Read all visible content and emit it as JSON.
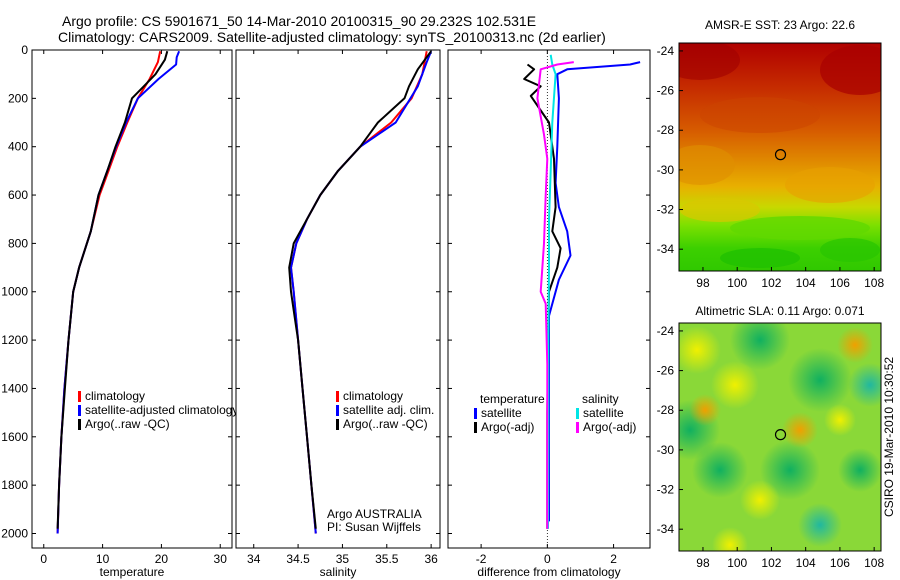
{
  "header": {
    "title_line1": "Argo profile: CS 5901671_50 14-Mar-2010 20100315_90 29.232S 102.531E",
    "title_line2": "Climatology: CARS2009. Satellite-adjusted climatology: synTS_20100313.nc (2d earlier)"
  },
  "chart_data": [
    {
      "type": "line",
      "panel": "temperature",
      "xlabel": "temperature",
      "ylabel": "",
      "xlim": [
        -2,
        32
      ],
      "ylim": [
        2060,
        0
      ],
      "xticks": [
        0,
        10,
        20,
        30
      ],
      "yticks": [
        0,
        200,
        400,
        600,
        800,
        1000,
        1200,
        1400,
        1600,
        1800,
        2000
      ],
      "legend": [
        "climatology",
        "satellite-adjusted climatology",
        "Argo(..raw -QC)"
      ],
      "legend_position": "lower-right",
      "series": [
        {
          "name": "climatology",
          "color": "#ff0000",
          "x": [
            19.8,
            19.4,
            18.0,
            16.0,
            14.2,
            12.5,
            11.0,
            9.5,
            8.0,
            6.0,
            5.0,
            4.2,
            3.5,
            3.0,
            2.6,
            2.35
          ],
          "y": [
            5,
            50,
            120,
            200,
            300,
            400,
            500,
            600,
            750,
            900,
            1000,
            1200,
            1400,
            1600,
            1800,
            2000
          ]
        },
        {
          "name": "satellite-adjusted climatology",
          "color": "#0000ff",
          "x": [
            23.0,
            22.6,
            22.5,
            19.5,
            16.0,
            14.0,
            12.3,
            10.8,
            9.3,
            8.0,
            6.0,
            5.0,
            4.2,
            3.5,
            3.0,
            2.6,
            2.35
          ],
          "y": [
            5,
            30,
            60,
            120,
            200,
            300,
            400,
            500,
            600,
            750,
            900,
            1000,
            1200,
            1400,
            1600,
            1800,
            2000
          ]
        },
        {
          "name": "Argo(..raw -QC)",
          "color": "#000000",
          "x": [
            21.0,
            20.6,
            19.0,
            17.0,
            15.0,
            13.8,
            12.2,
            10.8,
            9.3,
            8.0,
            6.0,
            5.0,
            4.2,
            3.6,
            3.0,
            2.6,
            2.35
          ],
          "y": [
            5,
            40,
            100,
            150,
            200,
            300,
            400,
            500,
            600,
            750,
            900,
            1000,
            1200,
            1400,
            1600,
            1800,
            1980
          ]
        }
      ]
    },
    {
      "type": "line",
      "panel": "salinity",
      "xlabel": "salinity",
      "xlim": [
        33.8,
        36.1
      ],
      "ylim": [
        2060,
        0
      ],
      "xticks": [
        34,
        34.5,
        35,
        35.5,
        36
      ],
      "legend": [
        "climatology",
        "satellite adj. clim.",
        "Argo(..raw -QC)"
      ],
      "legend_position": "lower-right",
      "annotations": [
        "Argo AUSTRALIA",
        "PI: Susan Wijffels"
      ],
      "series": [
        {
          "name": "climatology",
          "color": "#ff0000",
          "x": [
            35.95,
            35.9,
            35.78,
            35.55,
            35.2,
            34.95,
            34.75,
            34.6,
            34.48,
            34.42,
            34.45,
            34.5,
            34.55,
            34.6,
            34.65,
            34.7
          ],
          "y": [
            5,
            100,
            200,
            300,
            400,
            500,
            600,
            700,
            800,
            900,
            1000,
            1200,
            1400,
            1600,
            1800,
            2000
          ]
        },
        {
          "name": "satellite adj. clim.",
          "color": "#0000ff",
          "x": [
            36.0,
            35.95,
            35.85,
            35.6,
            35.2,
            34.95,
            34.75,
            34.6,
            34.48,
            34.42,
            34.45,
            34.5,
            34.55,
            34.6,
            34.65,
            34.7
          ],
          "y": [
            5,
            50,
            150,
            300,
            400,
            500,
            600,
            700,
            800,
            900,
            1000,
            1200,
            1400,
            1600,
            1800,
            2000
          ]
        },
        {
          "name": "Argo(..raw -QC)",
          "color": "#000000",
          "x": [
            36.0,
            35.85,
            35.75,
            35.7,
            35.55,
            35.4,
            35.2,
            34.95,
            34.75,
            34.6,
            34.45,
            34.4,
            34.42,
            34.46,
            34.5,
            34.55,
            34.6,
            34.65,
            34.7
          ],
          "y": [
            5,
            80,
            150,
            200,
            250,
            300,
            400,
            500,
            600,
            700,
            800,
            900,
            1000,
            1100,
            1200,
            1400,
            1600,
            1800,
            1980
          ]
        }
      ]
    },
    {
      "type": "line",
      "panel": "difference",
      "xlabel": "difference from climatology",
      "xlim": [
        -3,
        3.1
      ],
      "ylim": [
        2060,
        0
      ],
      "xticks": [
        -2,
        0,
        2
      ],
      "legend_temperature_title": "temperature",
      "legend_salinity_title": "salinity",
      "legend": [
        "satellite",
        "Argo(-adj)",
        "satellite",
        "Argo(-adj)"
      ],
      "legend_position": "lower-center",
      "series": [
        {
          "name": "temperature satellite",
          "color": "#0000ff",
          "x": [
            2.8,
            2.5,
            0.6,
            0.3,
            0.35,
            0.3,
            0.25,
            0.35,
            0.6,
            0.7,
            0.35,
            0.05,
            0.05,
            0.05,
            0.05,
            0.05
          ],
          "y": [
            50,
            60,
            80,
            100,
            200,
            400,
            550,
            650,
            750,
            850,
            950,
            1100,
            1300,
            1500,
            1700,
            1950
          ]
        },
        {
          "name": "temperature Argo(-adj)",
          "color": "#000000",
          "x": [
            -0.6,
            -0.4,
            -0.7,
            -0.2,
            -0.5,
            0.05,
            0.2,
            0.25,
            0.15,
            0.4,
            0.3,
            0.05,
            0.02,
            0.0,
            0.0,
            0.0
          ],
          "y": [
            60,
            80,
            120,
            150,
            190,
            300,
            450,
            650,
            750,
            820,
            900,
            1000,
            1200,
            1500,
            1800,
            1980
          ]
        },
        {
          "name": "salinity satellite",
          "color": "#00e5e5",
          "x": [
            0.1,
            0.15,
            0.25,
            0.15,
            0.1,
            0.05,
            0.05,
            0.03,
            0.03,
            0.02
          ],
          "y": [
            20,
            60,
            100,
            300,
            500,
            700,
            900,
            1200,
            1600,
            1980
          ]
        },
        {
          "name": "salinity Argo(-adj)",
          "color": "#ff00ff",
          "x": [
            0.8,
            0.3,
            -0.2,
            -0.3,
            -0.1,
            0.0,
            -0.05,
            -0.1,
            -0.2,
            -0.05,
            0.0,
            0.0
          ],
          "y": [
            50,
            60,
            80,
            200,
            350,
            450,
            600,
            800,
            1000,
            1050,
            1300,
            1980
          ]
        }
      ]
    }
  ],
  "maps": [
    {
      "type": "heatmap",
      "title": "AMSR-E SST: 23 Argo: 22.6",
      "xticks": [
        "98",
        "100",
        "102",
        "104",
        "106",
        "108"
      ],
      "yticks": [
        "-24",
        "-26",
        "-28",
        "-30",
        "-32",
        "-34"
      ],
      "xlim": [
        96.6,
        108.4
      ],
      "ylim": [
        -35.1,
        -23.6
      ],
      "marker": {
        "lon": 102.53,
        "lat": -29.23
      }
    },
    {
      "type": "heatmap",
      "title": "Altimetric SLA: 0.11 Argo: 0.071",
      "xticks": [
        "98",
        "100",
        "102",
        "104",
        "106",
        "108"
      ],
      "yticks": [
        "-24",
        "-26",
        "-28",
        "-30",
        "-32",
        "-34"
      ],
      "xlim": [
        96.6,
        108.4
      ],
      "ylim": [
        -35.1,
        -23.6
      ],
      "marker": {
        "lon": 102.53,
        "lat": -29.23
      },
      "side_label": "CSIRO 19-Mar-2010 10:30:52"
    }
  ],
  "colors": {
    "red": "#ff0000",
    "blue": "#0000ff",
    "black": "#000000",
    "cyan": "#00e5e5",
    "magenta": "#ff00ff"
  }
}
